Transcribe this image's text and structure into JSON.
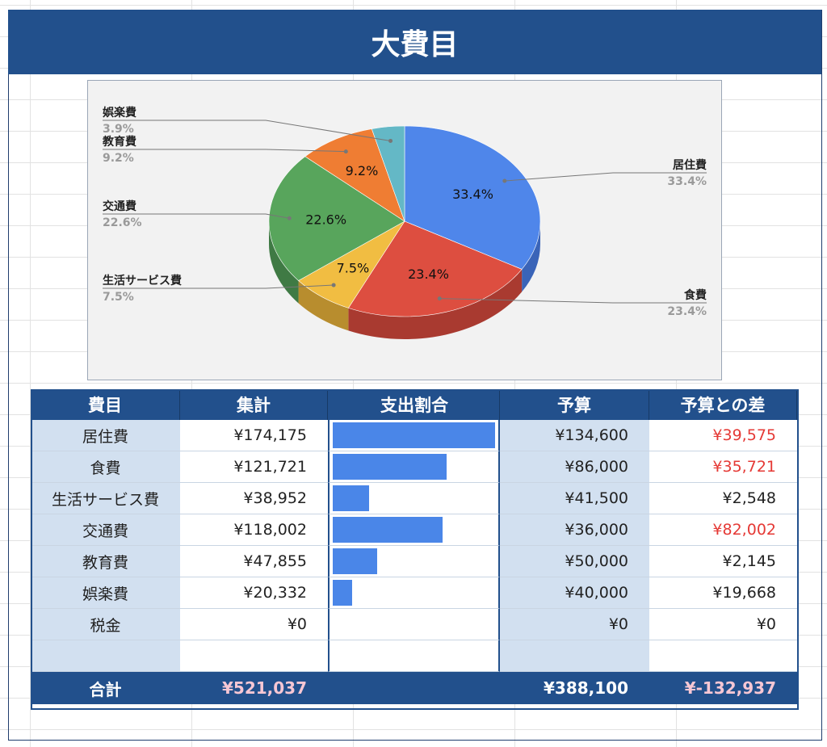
{
  "title": "大費目",
  "chart_data": {
    "type": "pie",
    "slices": [
      {
        "label": "居住費",
        "pct": 33.4,
        "pct_text": "33.4%",
        "color": "#4f86ea",
        "dark": "#3a64b8"
      },
      {
        "label": "食費",
        "pct": 23.4,
        "pct_text": "23.4%",
        "color": "#dd4e40",
        "dark": "#a93a30"
      },
      {
        "label": "生活サービス費",
        "pct": 7.5,
        "pct_text": "7.5%",
        "color": "#f1bd42",
        "dark": "#b88d2e"
      },
      {
        "label": "交通費",
        "pct": 22.6,
        "pct_text": "22.6%",
        "color": "#58a55c",
        "dark": "#3f7a44"
      },
      {
        "label": "教育費",
        "pct": 9.2,
        "pct_text": "9.2%",
        "color": "#ef7d33",
        "dark": "#b65d25"
      },
      {
        "label": "娯楽費",
        "pct": 3.9,
        "pct_text": "3.9%",
        "color": "#64b8c6",
        "dark": "#4a8c97"
      }
    ]
  },
  "table": {
    "headers": [
      "費目",
      "集計",
      "支出割合",
      "予算",
      "予算との差"
    ],
    "rows": [
      {
        "name": "居住費",
        "total": "¥174,175",
        "ratio": 1.0,
        "budget": "¥134,600",
        "diff": "¥39,575",
        "over": true
      },
      {
        "name": "食費",
        "total": "¥121,721",
        "ratio": 0.7,
        "budget": "¥86,000",
        "diff": "¥35,721",
        "over": true
      },
      {
        "name": "生活サービス費",
        "total": "¥38,952",
        "ratio": 0.224,
        "budget": "¥41,500",
        "diff": "¥2,548",
        "over": false
      },
      {
        "name": "交通費",
        "total": "¥118,002",
        "ratio": 0.678,
        "budget": "¥36,000",
        "diff": "¥82,002",
        "over": true
      },
      {
        "name": "教育費",
        "total": "¥47,855",
        "ratio": 0.275,
        "budget": "¥50,000",
        "diff": "¥2,145",
        "over": false
      },
      {
        "name": "娯楽費",
        "total": "¥20,332",
        "ratio": 0.117,
        "budget": "¥40,000",
        "diff": "¥19,668",
        "over": false
      },
      {
        "name": "税金",
        "total": "¥0",
        "ratio": 0,
        "budget": "¥0",
        "diff": "¥0",
        "over": false
      },
      {
        "name": "",
        "total": "",
        "ratio": 0,
        "budget": "",
        "diff": "",
        "over": false
      }
    ],
    "totals": {
      "label": "合計",
      "total": "¥521,037",
      "budget": "¥388,100",
      "diff": "¥-132,937"
    }
  },
  "colors": {
    "header": "#22508c",
    "bar": "#4a86e8",
    "over": "#e53935",
    "pink": "#f7c7d4"
  }
}
